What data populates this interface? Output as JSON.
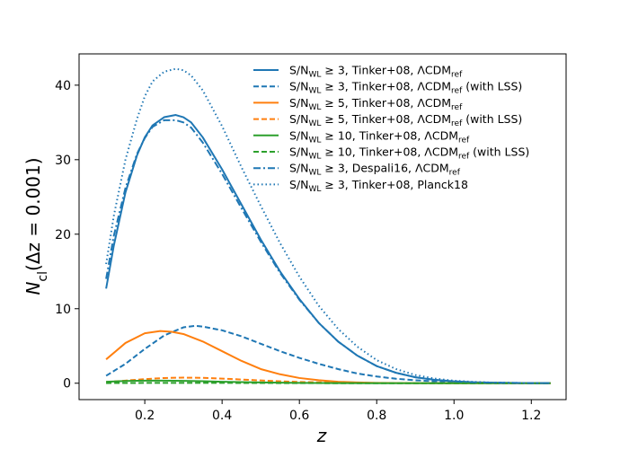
{
  "chart_data": {
    "type": "line",
    "title": "",
    "xlabel_main": "z",
    "ylabel": {
      "main": "N",
      "sub": "cl",
      "rest": "(Δz = 0.001)"
    },
    "xlim": [
      0.03,
      1.29
    ],
    "ylim": [
      -2.2,
      44.2
    ],
    "xticks": [
      0.2,
      0.4,
      0.6,
      0.8,
      1.0,
      1.2
    ],
    "xtick_labels": [
      "0.2",
      "0.4",
      "0.6",
      "0.8",
      "1.0",
      "1.2"
    ],
    "yticks": [
      0,
      10,
      20,
      30,
      40
    ],
    "ytick_labels": [
      "0",
      "10",
      "20",
      "30",
      "40"
    ],
    "legend_placement": "top-right",
    "series": [
      {
        "name": "S/N_WL ≥ 3, Tinker+08, ΛCDM_ref",
        "legend": {
          "a": "S/N",
          "a_sub": "WL",
          "b": " ≥ 3, Tinker+08, ΛCDM",
          "b_sub": "ref",
          "c": ""
        },
        "color": "#1f77b4",
        "style": "solid",
        "x": [
          0.1,
          0.12,
          0.15,
          0.18,
          0.2,
          0.22,
          0.25,
          0.28,
          0.3,
          0.32,
          0.35,
          0.4,
          0.45,
          0.5,
          0.55,
          0.6,
          0.65,
          0.7,
          0.75,
          0.8,
          0.85,
          0.9,
          0.95,
          1.0,
          1.05,
          1.1,
          1.15,
          1.2,
          1.25
        ],
        "y": [
          12.7,
          18.5,
          25.6,
          30.6,
          33.0,
          34.6,
          35.7,
          36.0,
          35.7,
          35.0,
          33.0,
          28.7,
          24.0,
          19.3,
          15.0,
          11.3,
          8.1,
          5.6,
          3.7,
          2.3,
          1.4,
          0.8,
          0.45,
          0.25,
          0.13,
          0.07,
          0.04,
          0.02,
          0.01
        ]
      },
      {
        "name": "S/N_WL ≥ 3, Tinker+08, ΛCDM_ref (with LSS)",
        "legend": {
          "a": "S/N",
          "a_sub": "WL",
          "b": " ≥ 3, Tinker+08, ΛCDM",
          "b_sub": "ref",
          "c": " (with LSS)"
        },
        "color": "#1f77b4",
        "style": "dashed",
        "x": [
          0.1,
          0.15,
          0.2,
          0.25,
          0.3,
          0.33,
          0.35,
          0.4,
          0.45,
          0.5,
          0.55,
          0.6,
          0.65,
          0.7,
          0.75,
          0.8,
          0.85,
          0.9,
          0.95,
          1.0,
          1.05,
          1.1,
          1.15,
          1.2,
          1.25
        ],
        "y": [
          1.0,
          2.6,
          4.6,
          6.4,
          7.5,
          7.7,
          7.6,
          7.1,
          6.3,
          5.3,
          4.3,
          3.4,
          2.6,
          1.9,
          1.3,
          0.9,
          0.6,
          0.4,
          0.25,
          0.15,
          0.09,
          0.05,
          0.03,
          0.02,
          0.01
        ]
      },
      {
        "name": "S/N_WL ≥ 5, Tinker+08, ΛCDM_ref",
        "legend": {
          "a": "S/N",
          "a_sub": "WL",
          "b": " ≥ 5, Tinker+08, ΛCDM",
          "b_sub": "ref",
          "c": ""
        },
        "color": "#ff7f0e",
        "style": "solid",
        "x": [
          0.1,
          0.15,
          0.2,
          0.24,
          0.27,
          0.3,
          0.35,
          0.4,
          0.45,
          0.5,
          0.55,
          0.6,
          0.65,
          0.7,
          0.75,
          0.8,
          0.85,
          0.9,
          1.0,
          1.1,
          1.25
        ],
        "y": [
          3.2,
          5.4,
          6.7,
          7.0,
          6.9,
          6.6,
          5.6,
          4.3,
          3.0,
          1.9,
          1.2,
          0.7,
          0.4,
          0.2,
          0.1,
          0.05,
          0.03,
          0.01,
          0.0,
          0.0,
          0.0
        ]
      },
      {
        "name": "S/N_WL ≥ 5, Tinker+08, ΛCDM_ref (with LSS)",
        "legend": {
          "a": "S/N",
          "a_sub": "WL",
          "b": " ≥ 5, Tinker+08, ΛCDM",
          "b_sub": "ref",
          "c": " (with LSS)"
        },
        "color": "#ff7f0e",
        "style": "dashed",
        "x": [
          0.1,
          0.15,
          0.2,
          0.25,
          0.3,
          0.35,
          0.4,
          0.45,
          0.5,
          0.55,
          0.6,
          0.7,
          0.8,
          0.9,
          1.0,
          1.25
        ],
        "y": [
          0.15,
          0.35,
          0.55,
          0.7,
          0.75,
          0.72,
          0.62,
          0.5,
          0.37,
          0.26,
          0.17,
          0.07,
          0.03,
          0.01,
          0.0,
          0.0
        ]
      },
      {
        "name": "S/N_WL ≥ 10, Tinker+08, ΛCDM_ref",
        "legend": {
          "a": "S/N",
          "a_sub": "WL",
          "b": " ≥ 10, Tinker+08, ΛCDM",
          "b_sub": "ref",
          "c": ""
        },
        "color": "#2ca02c",
        "style": "solid",
        "x": [
          0.1,
          0.15,
          0.2,
          0.25,
          0.3,
          0.35,
          0.4,
          0.5,
          0.6,
          0.7,
          0.8,
          1.0,
          1.25
        ],
        "y": [
          0.2,
          0.3,
          0.35,
          0.35,
          0.32,
          0.27,
          0.2,
          0.1,
          0.04,
          0.01,
          0.0,
          0.0,
          0.0
        ]
      },
      {
        "name": "S/N_WL ≥ 10, Tinker+08, ΛCDM_ref (with LSS)",
        "legend": {
          "a": "S/N",
          "a_sub": "WL",
          "b": " ≥ 10, Tinker+08, ΛCDM",
          "b_sub": "ref",
          "c": " (with LSS)"
        },
        "color": "#2ca02c",
        "style": "dashed",
        "x": [
          0.1,
          0.2,
          0.3,
          0.4,
          0.5,
          0.6,
          0.8,
          1.0,
          1.25
        ],
        "y": [
          0.02,
          0.04,
          0.05,
          0.04,
          0.03,
          0.01,
          0.0,
          0.0,
          0.0
        ]
      },
      {
        "name": "S/N_WL ≥ 3, Despali16, ΛCDM_ref",
        "legend": {
          "a": "S/N",
          "a_sub": "WL",
          "b": " ≥ 3, Despali16, ΛCDM",
          "b_sub": "ref",
          "c": ""
        },
        "color": "#1f77b4",
        "style": "dashdot",
        "x": [
          0.1,
          0.12,
          0.15,
          0.18,
          0.2,
          0.22,
          0.25,
          0.28,
          0.3,
          0.32,
          0.35,
          0.4,
          0.45,
          0.5,
          0.55,
          0.6,
          0.65,
          0.7,
          0.75,
          0.8,
          0.85,
          0.9,
          0.95,
          1.0,
          1.05,
          1.1,
          1.15,
          1.2,
          1.25
        ],
        "y": [
          14.0,
          19.8,
          26.2,
          30.8,
          32.9,
          34.4,
          35.3,
          35.3,
          35.0,
          34.3,
          32.3,
          28.1,
          23.5,
          19.0,
          14.8,
          11.2,
          8.1,
          5.6,
          3.7,
          2.3,
          1.4,
          0.8,
          0.45,
          0.25,
          0.13,
          0.07,
          0.04,
          0.02,
          0.01
        ]
      },
      {
        "name": "S/N_WL ≥ 3, Tinker+08, Planck18",
        "legend": {
          "a": "S/N",
          "a_sub": "WL",
          "b": " ≥ 3, Tinker+08, Planck18",
          "b_sub": "",
          "c": ""
        },
        "color": "#1f77b4",
        "style": "dotted",
        "x": [
          0.1,
          0.12,
          0.15,
          0.18,
          0.2,
          0.22,
          0.25,
          0.28,
          0.3,
          0.32,
          0.35,
          0.4,
          0.45,
          0.5,
          0.55,
          0.6,
          0.65,
          0.7,
          0.75,
          0.8,
          0.85,
          0.9,
          0.95,
          1.0,
          1.05,
          1.1,
          1.15,
          1.2,
          1.25
        ],
        "y": [
          16.0,
          22.5,
          30.0,
          35.5,
          38.5,
          40.5,
          41.8,
          42.2,
          42.0,
          41.3,
          39.3,
          34.5,
          29.0,
          23.8,
          18.8,
          14.3,
          10.4,
          7.3,
          4.9,
          3.1,
          1.9,
          1.1,
          0.62,
          0.34,
          0.18,
          0.09,
          0.05,
          0.02,
          0.01
        ]
      }
    ]
  }
}
